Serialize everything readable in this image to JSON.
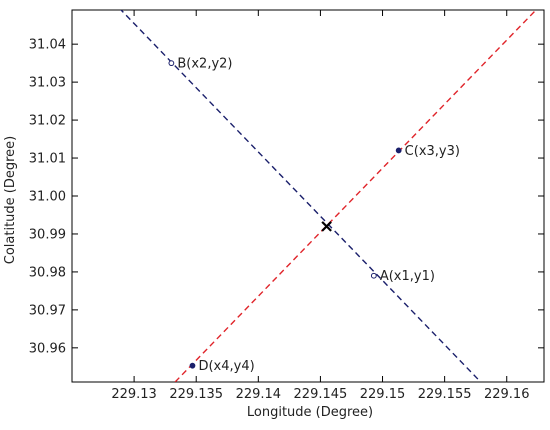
{
  "chart_data": {
    "type": "line",
    "xlabel": "Longitude (Degree)",
    "ylabel": "Colatitude (Degree)",
    "xlim": [
      229.125,
      229.163
    ],
    "ylim": [
      30.951,
      31.049
    ],
    "xticks": [
      229.13,
      229.135,
      229.14,
      229.145,
      229.15,
      229.155,
      229.16
    ],
    "xtick_labels": [
      "229.13",
      "229.135",
      "229.14",
      "229.145",
      "229.15",
      "229.155",
      "229.16"
    ],
    "yticks": [
      30.96,
      30.97,
      30.98,
      30.99,
      31.0,
      31.01,
      31.02,
      31.03,
      31.04
    ],
    "ytick_labels": [
      "30.96",
      "30.97",
      "30.98",
      "30.99",
      "31.00",
      "31.01",
      "31.02",
      "31.03",
      "31.04"
    ],
    "grid": false,
    "series": [
      {
        "style": "dashed",
        "color": "#1a1f6b",
        "x": [
          229.1288,
          229.1579
        ],
        "y": [
          31.0495,
          30.951
        ]
      },
      {
        "style": "dashed",
        "color": "#e0242a",
        "x": [
          229.1333,
          229.1625
        ],
        "y": [
          30.951,
          31.0495
        ]
      }
    ],
    "points": [
      {
        "label": "A(x1,y1)",
        "x": 229.1493,
        "y": 30.979,
        "fill": "none"
      },
      {
        "label": "B(x2,y2)",
        "x": 229.133,
        "y": 31.035,
        "fill": "none"
      },
      {
        "label": "C(x3,y3)",
        "x": 229.1513,
        "y": 31.012,
        "fill": "#1a1f6b"
      },
      {
        "label": "D(x4,y4)",
        "x": 229.1347,
        "y": 30.9553,
        "fill": "#1a1f6b"
      }
    ],
    "intersection": {
      "x": 229.1455,
      "y": 30.992,
      "marker": "x"
    }
  }
}
